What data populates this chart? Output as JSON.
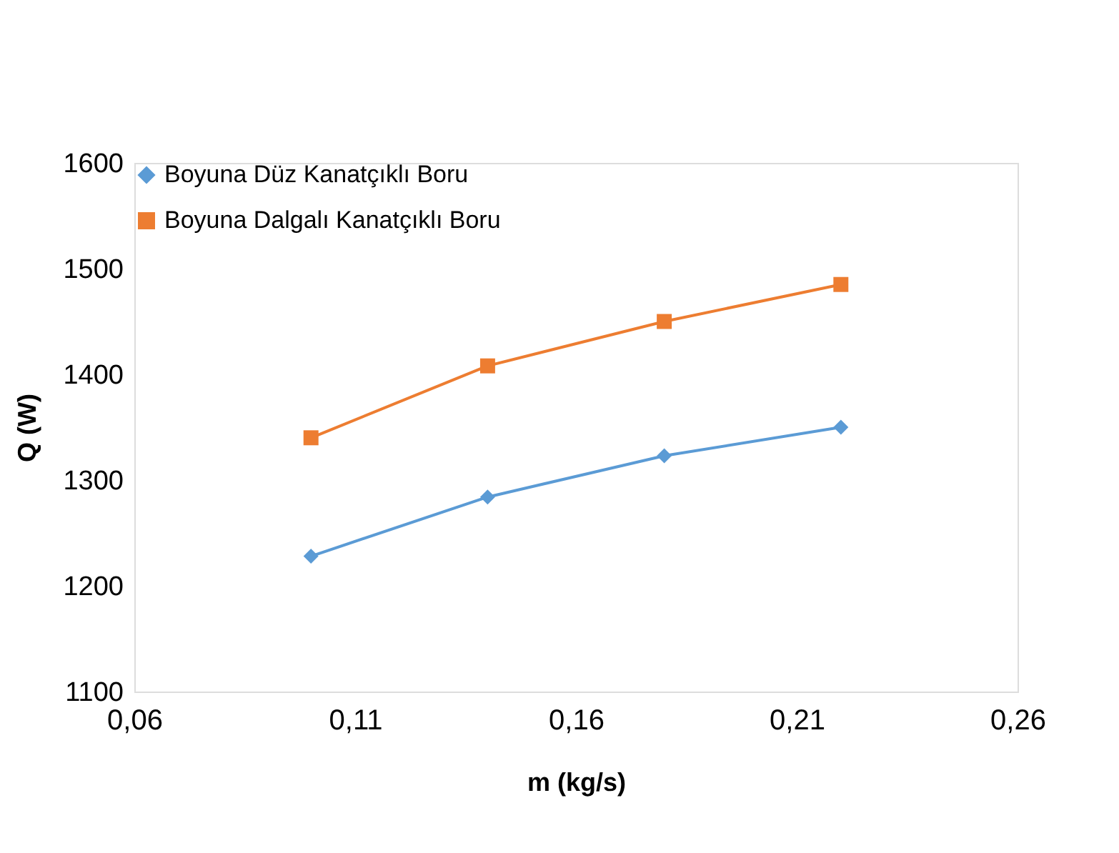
{
  "chart_data": {
    "type": "line",
    "xlabel": "m (kg/s)",
    "ylabel": "Q (W)",
    "x": [
      0.1,
      0.14,
      0.18,
      0.22
    ],
    "series": [
      {
        "name": "Boyuna Düz Kanatçıklı Boru",
        "color": "#5b9bd5",
        "marker": "diamond",
        "values": [
          1228,
          1284,
          1323,
          1350
        ]
      },
      {
        "name": "Boyuna Dalgalı Kanatçıklı Boru",
        "color": "#ed7d31",
        "marker": "square",
        "values": [
          1340,
          1408,
          1450,
          1485
        ]
      }
    ],
    "xlim": [
      0.06,
      0.26
    ],
    "xticks": [
      {
        "value": 0.06,
        "label": "0,06"
      },
      {
        "value": 0.11,
        "label": "0,11"
      },
      {
        "value": 0.16,
        "label": "0,16"
      },
      {
        "value": 0.21,
        "label": "0,21"
      },
      {
        "value": 0.26,
        "label": "0,26"
      }
    ],
    "ylim": [
      1100,
      1600
    ],
    "yticks": [
      1100,
      1200,
      1300,
      1400,
      1500,
      1600
    ],
    "grid": false,
    "legend": "top",
    "line_style": "solid"
  }
}
